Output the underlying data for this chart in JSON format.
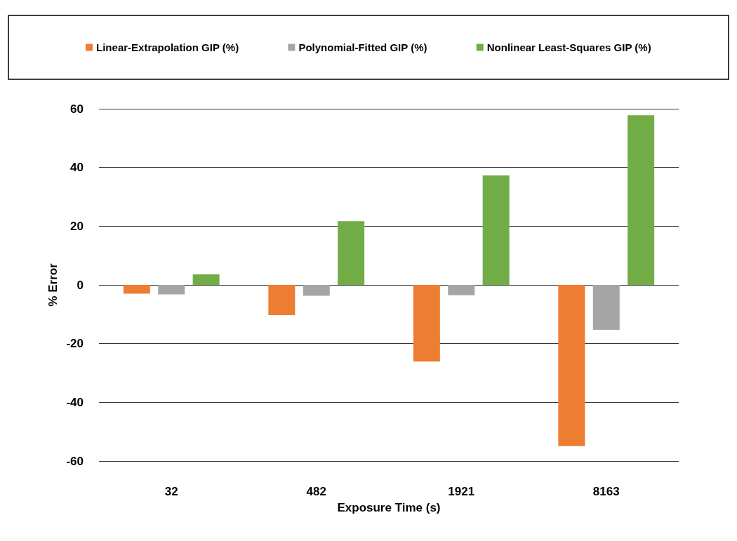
{
  "chart_data": {
    "type": "bar",
    "xlabel": "Exposure Time (s)",
    "ylabel": "% Error",
    "categories": [
      "32",
      "482",
      "1921",
      "8163"
    ],
    "series": [
      {
        "name": "Linear-Extrapolation GIP (%)",
        "color": "#ed7d31",
        "values": [
          -3.0,
          -10.3,
          -26.1,
          -54.9
        ]
      },
      {
        "name": "Polynomial-Fitted GIP (%)",
        "color": "#a5a5a5",
        "values": [
          -3.2,
          -3.7,
          -3.5,
          -15.3
        ]
      },
      {
        "name": "Nonlinear Least-Squares GIP (%)",
        "color": "#70ad47",
        "values": [
          3.6,
          21.7,
          37.3,
          57.8
        ]
      }
    ],
    "ylim": [
      -60,
      60
    ],
    "yticks": [
      -60,
      -40,
      -20,
      0,
      20,
      40,
      60
    ],
    "grid": "y",
    "legend": "top"
  }
}
